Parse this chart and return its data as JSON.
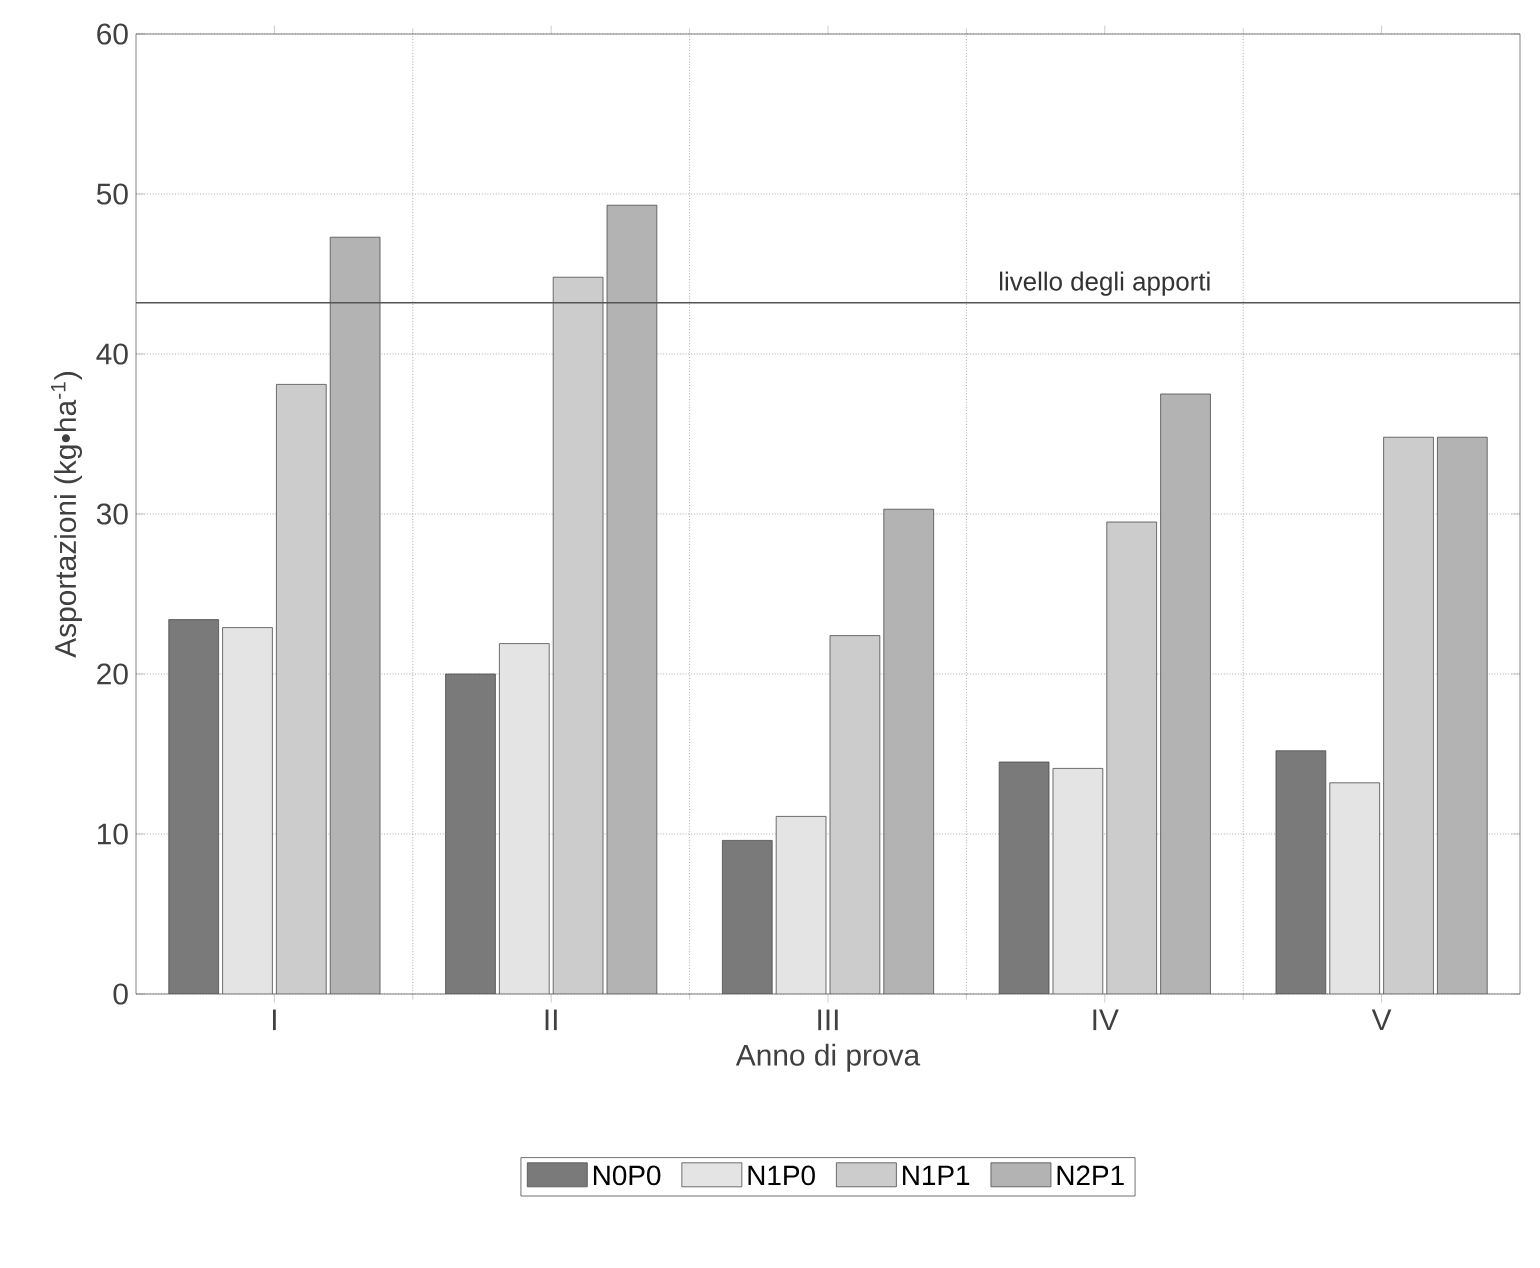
{
  "chart_data": {
    "type": "bar",
    "xlabel": "Anno di prova",
    "ylabel": "Asportazioni (kg•ha$^{-1}$)",
    "categories": [
      "I",
      "II",
      "III",
      "IV",
      "V"
    ],
    "series": [
      {
        "name": "N0P0",
        "color": "#7a7a7a",
        "values": [
          23.4,
          20.0,
          9.6,
          14.5,
          15.2
        ]
      },
      {
        "name": "N1P0",
        "color": "#e4e4e4",
        "values": [
          22.9,
          21.9,
          11.1,
          14.1,
          13.2
        ]
      },
      {
        "name": "N1P1",
        "color": "#cccccc",
        "values": [
          38.1,
          44.8,
          22.4,
          29.5,
          34.8
        ]
      },
      {
        "name": "N2P1",
        "color": "#b3b3b3",
        "values": [
          47.3,
          49.3,
          30.3,
          37.5,
          34.8
        ]
      }
    ],
    "ylim": [
      0,
      60
    ],
    "yticks": [
      0,
      10,
      20,
      30,
      40,
      50,
      60
    ],
    "ref_lines": [
      {
        "axis": "y",
        "value": 43.2,
        "label": "livello degli apporti",
        "color": "#555555"
      }
    ],
    "grid": true,
    "legend": "bottom"
  }
}
